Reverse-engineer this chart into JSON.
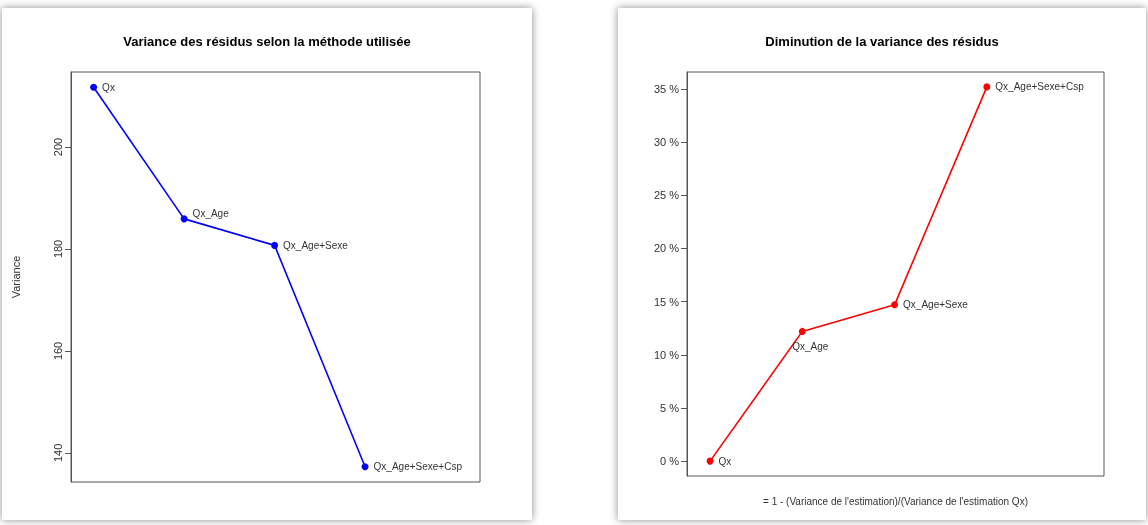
{
  "chart_data": [
    {
      "type": "line",
      "title": "Variance des résidus selon la méthode utilisée",
      "ylabel": "Variance",
      "categories": [
        null,
        null,
        null,
        null
      ],
      "series": [
        {
          "color": "#0000ff",
          "values": [
            211.7,
            185.9,
            180.7,
            137.3
          ],
          "value_labels": [
            "Qx",
            "Qx_Age",
            "Qx_Age+Sexe",
            "Qx_Age+Sexe+Csp"
          ]
        }
      ],
      "ylim": [
        134.3,
        214.7
      ],
      "yticks": [
        140,
        160,
        180,
        200
      ],
      "tick_labels": "y",
      "grid": false,
      "marker": "circle",
      "line_style": "solid"
    },
    {
      "type": "line",
      "title": "Diminution de la variance des résidus",
      "xlabel": "= 1 - (Variance de l'estimation)/(Variance de l'estimation Qx)",
      "categories": [
        null,
        null,
        null,
        null
      ],
      "series": [
        {
          "color": "#ff0000",
          "values": [
            0,
            12.2,
            14.7,
            35.2
          ],
          "value_labels": [
            "Qx",
            "Qx_Age",
            "Qx_Age+Sexe",
            "Qx_Age+Sexe+Csp"
          ]
        }
      ],
      "ylim": [
        -1.4,
        36.6
      ],
      "yticks": [
        {
          "value": 0,
          "label": "0 %"
        },
        {
          "value": 5,
          "label": "5 %"
        },
        {
          "value": 10,
          "label": "10 %"
        },
        {
          "value": 15,
          "label": "15 %"
        },
        {
          "value": 20,
          "label": "20 %"
        },
        {
          "value": 25,
          "label": "25 %"
        },
        {
          "value": 30,
          "label": "30 %"
        },
        {
          "value": 35,
          "label": "35 %"
        }
      ],
      "tick_labels": "y",
      "grid": false,
      "marker": "circle",
      "line_style": "solid"
    }
  ]
}
